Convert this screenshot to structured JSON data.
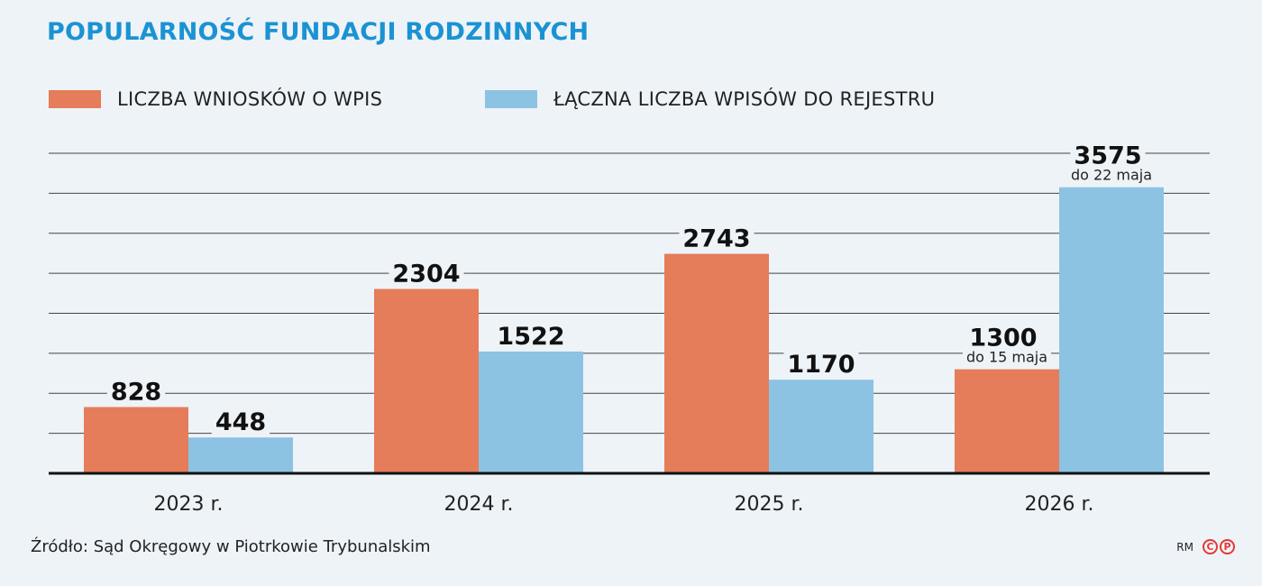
{
  "title": "POPULARNOŚĆ FUNDACJI RODZINNYCH",
  "legend": [
    {
      "label": "LICZBA WNIOSKÓW O WPIS",
      "color": "#e57c5a"
    },
    {
      "label": "ŁĄCZNA LICZBA WPISÓW DO REJESTRU",
      "color": "#8cc3e2"
    }
  ],
  "source": "Źródło: Sąd Okręgowy w Piotrkowie Trybunalskim",
  "credit": {
    "initials": "RM",
    "logo_letters": [
      "C",
      "P"
    ]
  },
  "chart_data": {
    "type": "bar",
    "categories": [
      "2023 r.",
      "2024 r.",
      "2025 r.",
      "2026 r."
    ],
    "series": [
      {
        "name": "LICZBA WNIOSKÓW O WPIS",
        "values": [
          828,
          2304,
          2743,
          1300
        ],
        "notes": [
          "",
          "",
          "",
          "do 15 maja"
        ],
        "color": "#e57c5a"
      },
      {
        "name": "ŁĄCZNA LICZBA WPISÓW DO REJESTRU",
        "values": [
          448,
          1522,
          1170,
          3575
        ],
        "notes": [
          "",
          "",
          "",
          "do 22 maja"
        ],
        "color": "#8cc3e2"
      }
    ],
    "ylim": [
      0,
      4000
    ],
    "grid": true,
    "legend_position": "top-left"
  }
}
